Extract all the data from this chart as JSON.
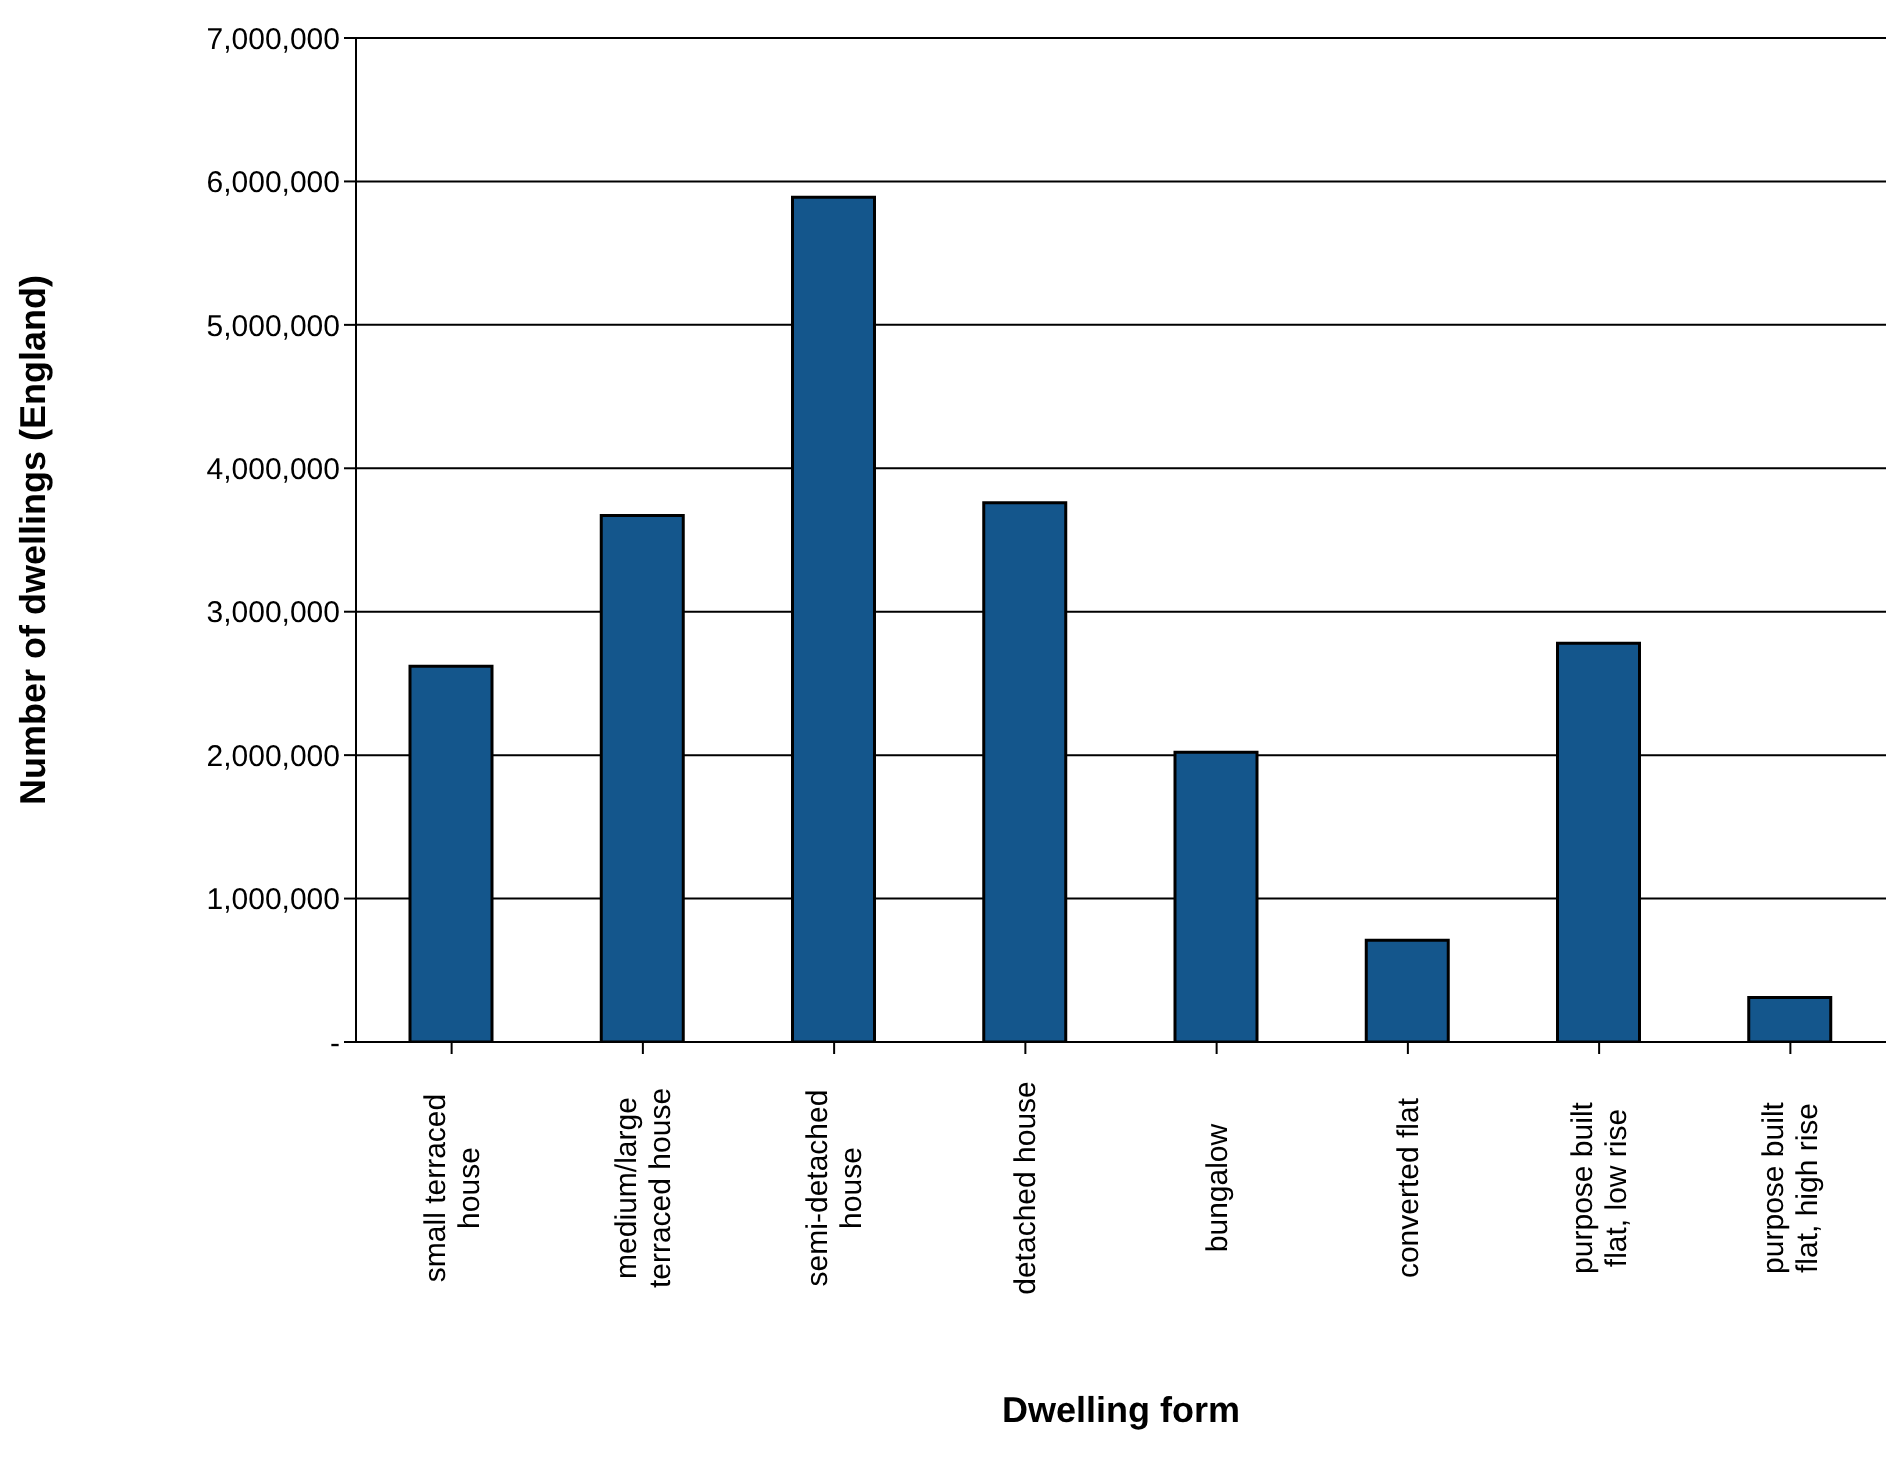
{
  "chart_data": {
    "type": "bar",
    "xlabel": "Dwelling form",
    "ylabel": "Number of dwellings (England)",
    "categories": [
      "small terraced house",
      "medium/large terraced house",
      "semi-detached house",
      "detached house",
      "bungalow",
      "converted flat",
      "purpose built flat, low rise",
      "purpose built flat, high rise"
    ],
    "values": [
      2620000,
      3670000,
      5890000,
      3760000,
      2020000,
      710000,
      2780000,
      310000
    ],
    "color": "#14568c",
    "ylim": [
      0,
      7000000
    ],
    "yticks": [
      {
        "value": 0,
        "label": "-"
      },
      {
        "value": 1000000,
        "label": "1,000,000"
      },
      {
        "value": 2000000,
        "label": "2,000,000"
      },
      {
        "value": 3000000,
        "label": "3,000,000"
      },
      {
        "value": 4000000,
        "label": "4,000,000"
      },
      {
        "value": 5000000,
        "label": "5,000,000"
      },
      {
        "value": 6000000,
        "label": "6,000,000"
      },
      {
        "value": 7000000,
        "label": "7,000,000"
      }
    ],
    "grid": "y",
    "legend": false
  }
}
